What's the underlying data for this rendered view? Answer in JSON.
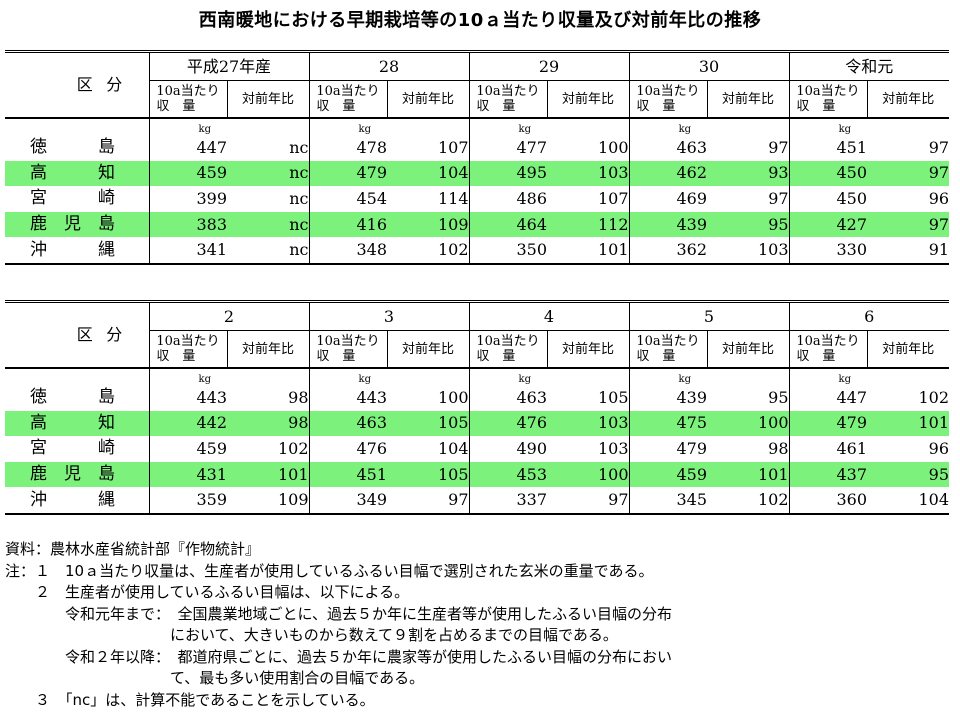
{
  "title": "西南暖地における早期栽培等の10ａ当たり収量及び対前年比の推移",
  "header": {
    "kubun_a": "区",
    "kubun_b": "分",
    "yield_line1": "10a当たり",
    "yield_line2": "収　量",
    "yoy": "対前年比",
    "unit": "kg"
  },
  "tables": [
    {
      "years": [
        "平成27年産",
        "28",
        "29",
        "30",
        "令和元"
      ],
      "rows": [
        {
          "pref": "徳　　　島",
          "highlight": false,
          "values": [
            "447",
            "nc",
            "478",
            "107",
            "477",
            "100",
            "463",
            "97",
            "451",
            "97"
          ]
        },
        {
          "pref": "高　　　知",
          "highlight": true,
          "values": [
            "459",
            "nc",
            "479",
            "104",
            "495",
            "103",
            "462",
            "93",
            "450",
            "97"
          ]
        },
        {
          "pref": "宮　　　崎",
          "highlight": false,
          "values": [
            "399",
            "nc",
            "454",
            "114",
            "486",
            "107",
            "469",
            "97",
            "450",
            "96"
          ]
        },
        {
          "pref": "鹿　児　島",
          "highlight": true,
          "values": [
            "383",
            "nc",
            "416",
            "109",
            "464",
            "112",
            "439",
            "95",
            "427",
            "97"
          ]
        },
        {
          "pref": "沖　　　縄",
          "highlight": false,
          "values": [
            "341",
            "nc",
            "348",
            "102",
            "350",
            "101",
            "362",
            "103",
            "330",
            "91"
          ]
        }
      ]
    },
    {
      "years": [
        "2",
        "3",
        "4",
        "5",
        "6"
      ],
      "rows": [
        {
          "pref": "徳　　　島",
          "highlight": false,
          "values": [
            "443",
            "98",
            "443",
            "100",
            "463",
            "105",
            "439",
            "95",
            "447",
            "102"
          ]
        },
        {
          "pref": "高　　　知",
          "highlight": true,
          "values": [
            "442",
            "98",
            "463",
            "105",
            "476",
            "103",
            "475",
            "100",
            "479",
            "101"
          ]
        },
        {
          "pref": "宮　　　崎",
          "highlight": false,
          "values": [
            "459",
            "102",
            "476",
            "104",
            "490",
            "103",
            "479",
            "98",
            "461",
            "96"
          ]
        },
        {
          "pref": "鹿　児　島",
          "highlight": true,
          "values": [
            "431",
            "101",
            "451",
            "105",
            "453",
            "100",
            "459",
            "101",
            "437",
            "95"
          ]
        },
        {
          "pref": "沖　　　縄",
          "highlight": false,
          "values": [
            "359",
            "109",
            "349",
            "97",
            "337",
            "97",
            "345",
            "102",
            "360",
            "104"
          ]
        }
      ]
    }
  ],
  "notes": [
    "資料：農林水産省統計部『作物統計』",
    "注：１　10ａ当たり収量は、生産者が使用しているふるい目幅で選別された玄米の重量である。",
    "　　２　生産者が使用しているふるい目幅は、以下による。",
    "　　　　令和元年まで：　全国農業地域ごとに、過去５か年に生産者等が使用したふるい目幅の分布",
    "　　　　　　　　　　　において、大きいものから数えて９割を占めるまでの目幅である。",
    "　　　　令和２年以降：　都道府県ごとに、過去５か年に農家等が使用したふるい目幅の分布におい",
    "　　　　　　　　　　　て、最も多い使用割合の目幅である。",
    "　　３　「nc」は、計算不能であることを示している。"
  ],
  "colors": {
    "highlight": "#7cf17c"
  }
}
